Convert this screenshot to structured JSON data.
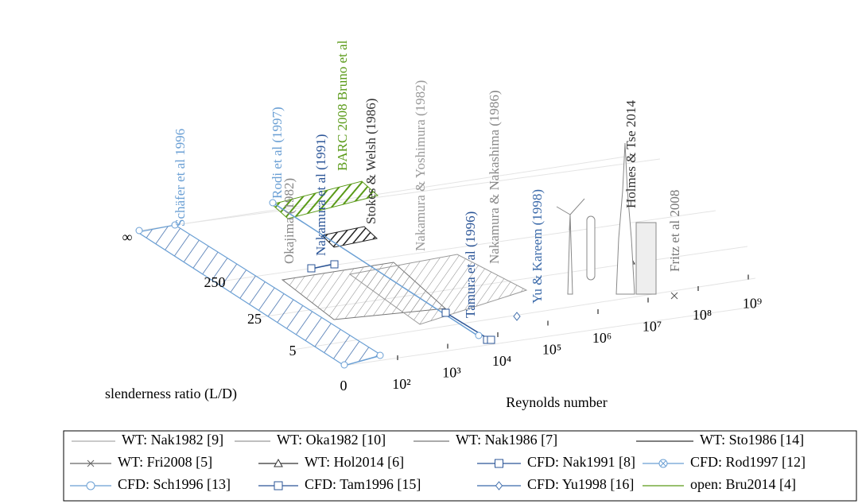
{
  "chart_data": {
    "type": "study-map",
    "xlabel": "Reynolds number",
    "ylabel": "slenderness ratio (L/D)",
    "xticks": [
      {
        "value": 2,
        "label": "10²"
      },
      {
        "value": 3,
        "label": "10³"
      },
      {
        "value": 4,
        "label": "10⁴"
      },
      {
        "value": 5,
        "label": "10⁵"
      },
      {
        "value": 6,
        "label": "10⁶"
      },
      {
        "value": 7,
        "label": "10⁷"
      },
      {
        "value": 8,
        "label": "10⁸"
      },
      {
        "value": 9,
        "label": "10⁹"
      }
    ],
    "yticks": [
      "0",
      "5",
      "25",
      "250",
      "∞"
    ],
    "annotations": [
      {
        "text": "Schäfer et al 1996",
        "color": "#6a9fd4"
      },
      {
        "text": "Rodi et al (1997)",
        "color": "#6a9fd4"
      },
      {
        "text": "Okajima (1982)",
        "color": "#888888"
      },
      {
        "text": "Nakamura et al (1991)",
        "color": "#2b5597"
      },
      {
        "text": "BARC 2008 Bruno et al",
        "color": "#5a9a18"
      },
      {
        "text": "Stokes & Welsh (1986)",
        "color": "#333333"
      },
      {
        "text": "Nakamura & Yoshimura (1982)",
        "color": "#999999"
      },
      {
        "text": "Tamura et al (1996)",
        "color": "#2b5597"
      },
      {
        "text": "Nakamura & Nakashima (1986)",
        "color": "#888888"
      },
      {
        "text": "Yu & Kareem (1998)",
        "color": "#3b6aaa"
      },
      {
        "text": "Holmes & Tse 2014",
        "color": "#333333"
      },
      {
        "text": "Fritz et al 2008",
        "color": "#777777"
      }
    ],
    "legend": [
      {
        "name": "WT: Nak1982 [9]",
        "color": "#aaaaaa",
        "marker": "none"
      },
      {
        "name": "WT: Oka1982 [10]",
        "color": "#999999",
        "marker": "none"
      },
      {
        "name": "WT: Nak1986 [7]",
        "color": "#777777",
        "marker": "none"
      },
      {
        "name": "WT: Sto1986 [14]",
        "color": "#333333",
        "marker": "none"
      },
      {
        "name": "WT: Fri2008 [5]",
        "color": "#666666",
        "marker": "cross"
      },
      {
        "name": "WT: Hol2014 [6]",
        "color": "#333333",
        "marker": "triangle"
      },
      {
        "name": "CFD: Nak1991 [8]",
        "color": "#2b5597",
        "marker": "square"
      },
      {
        "name": "CFD: Rod1997 [12]",
        "color": "#6a9fd4",
        "marker": "circle-x"
      },
      {
        "name": "CFD: Sch1996 [13]",
        "color": "#6a9fd4",
        "marker": "circle"
      },
      {
        "name": "CFD: Tam1996 [15]",
        "color": "#2b5597",
        "marker": "square"
      },
      {
        "name": "CFD: Yu1998 [16]",
        "color": "#3b6aaa",
        "marker": "diamond"
      },
      {
        "name": "open: Bru2014 [4]",
        "color": "#5a9a18",
        "marker": "none"
      }
    ]
  }
}
